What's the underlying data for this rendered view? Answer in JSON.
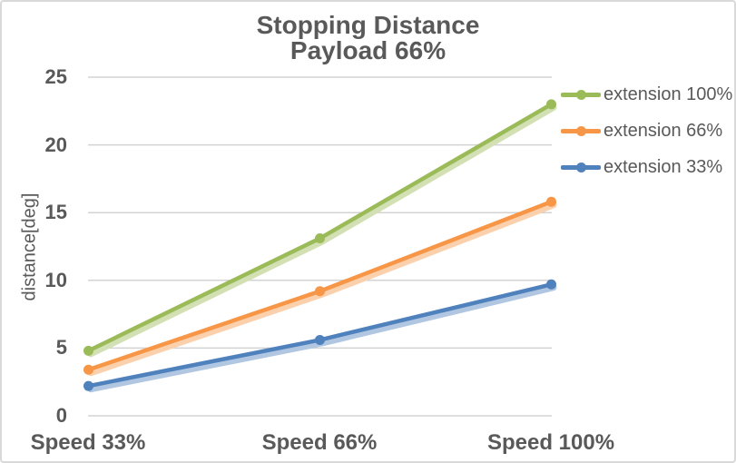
{
  "title": {
    "line1": "Stopping Distance",
    "line2": "Payload 66%"
  },
  "y_axis": {
    "label": "distance[deg]",
    "ticks": [
      "25",
      "20",
      "15",
      "10",
      "5",
      "0"
    ]
  },
  "x_axis": {
    "ticks": [
      "Speed 33%",
      "Speed 66%",
      "Speed 100%"
    ]
  },
  "legend": {
    "items": [
      {
        "label": "extension 100%"
      },
      {
        "label": "extension 66%"
      },
      {
        "label": "extension 33%"
      }
    ]
  },
  "colors": {
    "green": "#9BBB59",
    "orange": "#F79646",
    "blue": "#4F81BD",
    "grid": "#D3D3D3",
    "text": "#595959",
    "border": "#D9D9D9"
  },
  "chart_data": {
    "type": "line",
    "title": "Stopping Distance",
    "subtitle": "Payload 66%",
    "categories": [
      "Speed 33%",
      "Speed 66%",
      "Speed 100%"
    ],
    "series": [
      {
        "name": "extension 100%",
        "color": "#9BBB59",
        "values": [
          4.8,
          13.1,
          23.0
        ]
      },
      {
        "name": "extension 66%",
        "color": "#F79646",
        "values": [
          3.4,
          9.2,
          15.8
        ]
      },
      {
        "name": "extension 33%",
        "color": "#4F81BD",
        "values": [
          2.2,
          5.6,
          9.7
        ]
      }
    ],
    "xlabel": "",
    "ylabel": "distance[deg]",
    "ylim": [
      0,
      25
    ],
    "ytick_step": 5,
    "grid": true,
    "legend_position": "right",
    "marker": "circle",
    "line_effect": "soft-glow-offset"
  }
}
